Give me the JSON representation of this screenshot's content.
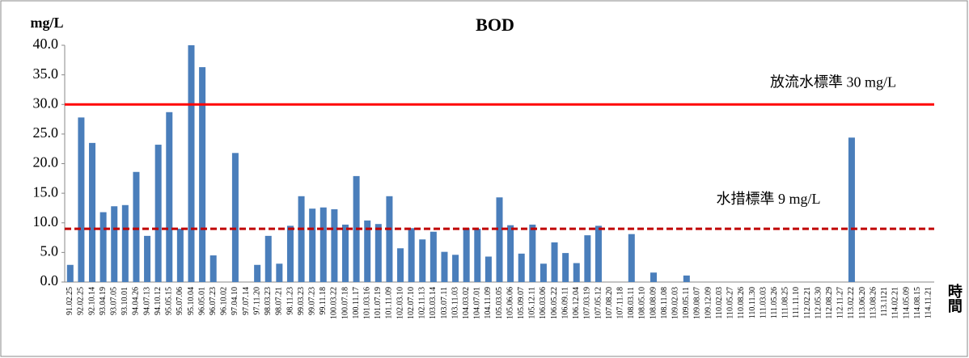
{
  "chart_data": {
    "type": "bar",
    "title": "BOD",
    "y_label": "mg/L",
    "x_label": "時間",
    "categories": [
      "91.02.25",
      "92.02.25",
      "92.10.14",
      "93.04.19",
      "93.07.05",
      "93.10.01",
      "94.04.26",
      "94.07.13",
      "94.10.12",
      "95.05.15",
      "95.07.06",
      "95.10.04",
      "96.05.01",
      "96.07.23",
      "96.10.02",
      "97.04.10",
      "97.07.14",
      "97.11.20",
      "98.03.23",
      "98.07.21",
      "98.11.23",
      "99.03.23",
      "99.07.23",
      "99.11.18",
      "100.03.22",
      "100.07.18",
      "100.11.17",
      "101.03.16",
      "101.07.19",
      "101.11.09",
      "102.03.10",
      "102.07.10",
      "102.11.13",
      "103.03.14",
      "103.07.11",
      "103.11.03",
      "104.03.02",
      "104.07.01",
      "104.11.09",
      "105.03.05",
      "105.06.06",
      "105.09.07",
      "105.12.11",
      "106.03.06",
      "106.05.22",
      "106.09.11",
      "106.12.04",
      "107.03.19",
      "107.05.12",
      "107.08.20",
      "107.11.18",
      "108.03.11",
      "108.05.10",
      "108.08.09",
      "108.11.08",
      "109.02.03",
      "109.05.11",
      "109.08.07",
      "109.12.09",
      "110.02.03",
      "110.05.27",
      "110.08.26",
      "110.11.30",
      "111.03.03",
      "111.05.26",
      "111.08.25",
      "111.11.10",
      "112.02.21",
      "112.05.30",
      "112.08.29",
      "112.11.27",
      "113.02.22",
      "113.06.20",
      "113.08.26",
      "113.1121",
      "114.02.21",
      "114.05.09",
      "114.08.15",
      "114.11.21"
    ],
    "values": [
      2.9,
      27.8,
      23.5,
      11.8,
      12.8,
      13.0,
      18.6,
      7.8,
      23.2,
      28.7,
      9.0,
      40,
      36.3,
      4.5,
      0,
      21.8,
      0,
      2.9,
      7.8,
      3.1,
      9.5,
      14.5,
      12.4,
      12.6,
      12.3,
      9.7,
      17.9,
      10.4,
      9.8,
      14.5,
      5.7,
      9.1,
      7.2,
      8.5,
      5.1,
      4.6,
      9.1,
      9.0,
      4.3,
      14.3,
      9.6,
      4.8,
      9.7,
      3.1,
      6.7,
      4.9,
      3.2,
      7.9,
      9.5,
      0,
      0,
      8.1,
      0,
      1.6,
      0,
      0,
      1.1,
      0,
      0,
      0,
      0,
      0,
      0,
      0,
      0,
      0,
      0,
      0,
      0,
      0,
      0,
      24.4,
      0,
      0,
      0,
      0,
      0,
      0,
      0
    ],
    "color": "#4a7ebb",
    "ylim": [
      0,
      40
    ],
    "yticks": [
      {
        "value": 0,
        "label": "0.0"
      },
      {
        "value": 5,
        "label": "5.0"
      },
      {
        "value": 10,
        "label": "10.0"
      },
      {
        "value": 15,
        "label": "15.0"
      },
      {
        "value": 20,
        "label": "20.0"
      },
      {
        "value": 25,
        "label": "25.0"
      },
      {
        "value": 30,
        "label": "30.0"
      },
      {
        "value": 35,
        "label": "35.0"
      },
      {
        "value": 40,
        "label": "40.0"
      }
    ],
    "grid": false,
    "reference_lines": [
      {
        "value": 30,
        "label": "放流水標準 30 mg/L",
        "color": "#ff0000",
        "style": "solid"
      },
      {
        "value": 9,
        "label": "水措標準 9 mg/L",
        "color": "#c00000",
        "style": "dashed"
      }
    ]
  }
}
